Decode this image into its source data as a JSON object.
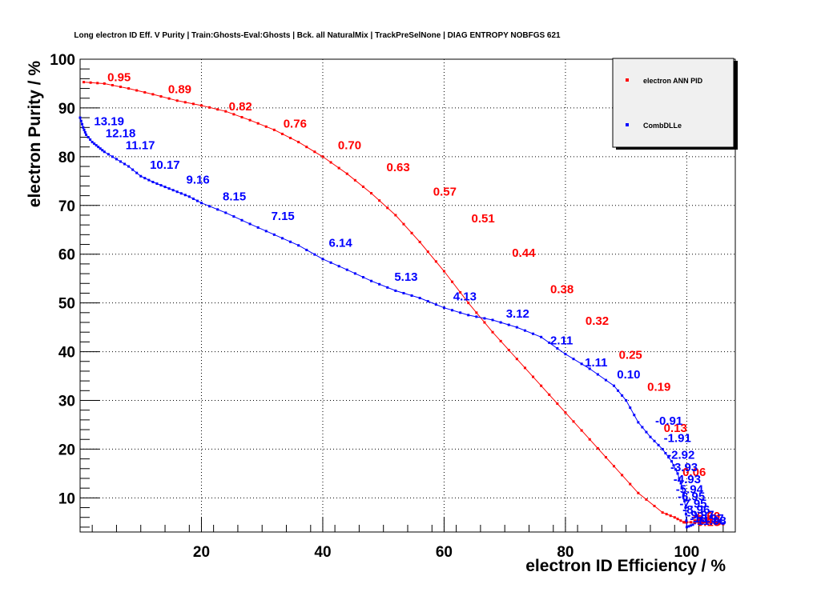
{
  "chart_data": {
    "type": "line",
    "title": "Long electron ID Eff. V Purity | Train:Ghosts-Eval:Ghosts | Bck. all NaturalMix | TrackPreSelNone | DIAG ENTROPY NOBFGS 621",
    "xlabel": "electron ID Efficiency / %",
    "ylabel": "electron Purity / %",
    "xlim": [
      0,
      108
    ],
    "ylim": [
      3,
      100
    ],
    "xticks": [
      20,
      40,
      60,
      80,
      100
    ],
    "yticks": [
      10,
      20,
      30,
      40,
      50,
      60,
      70,
      80,
      90,
      100
    ],
    "grid": true,
    "legend_position": "top-right",
    "series": [
      {
        "name": "electron ANN PID",
        "color": "#ff0000",
        "x": [
          0.6,
          4,
          8,
          12,
          16,
          20,
          24,
          28,
          32,
          36,
          40,
          44,
          48,
          52,
          56,
          60,
          64,
          68,
          72,
          76,
          80,
          84,
          88,
          92,
          96,
          98,
          99.5,
          100,
          102,
          104,
          106
        ],
        "y": [
          95.3,
          95,
          94,
          92.8,
          91.5,
          90.5,
          89.3,
          87.5,
          85.5,
          83,
          80,
          76.5,
          72.5,
          68,
          62.5,
          56.5,
          50,
          44,
          38.5,
          33,
          27.5,
          22,
          16.5,
          11,
          7,
          6,
          5,
          5,
          5,
          4.8,
          4.6
        ],
        "labels": [
          {
            "text": "0.95",
            "x": 4.5,
            "y": 95.5
          },
          {
            "text": "0.89",
            "x": 14.5,
            "y": 93
          },
          {
            "text": "0.82",
            "x": 24.5,
            "y": 89.5
          },
          {
            "text": "0.76",
            "x": 33.5,
            "y": 86
          },
          {
            "text": "0.70",
            "x": 42.5,
            "y": 81.5
          },
          {
            "text": "0.63",
            "x": 50.5,
            "y": 77
          },
          {
            "text": "0.57",
            "x": 58.2,
            "y": 72
          },
          {
            "text": "0.51",
            "x": 64.5,
            "y": 66.5
          },
          {
            "text": "0.44",
            "x": 71.2,
            "y": 59.5
          },
          {
            "text": "0.38",
            "x": 77.5,
            "y": 52
          },
          {
            "text": "0.32",
            "x": 83.3,
            "y": 45.5
          },
          {
            "text": "0.25",
            "x": 88.8,
            "y": 38.5
          },
          {
            "text": "0.19",
            "x": 93.5,
            "y": 32
          },
          {
            "text": "0.13",
            "x": 96.2,
            "y": 23.5
          },
          {
            "text": "0.06",
            "x": 99.3,
            "y": 14.5
          },
          {
            "text": "-0.00",
            "x": 101,
            "y": 5.5
          },
          {
            "text": "-0.06",
            "x": 101,
            "y": 4.8
          },
          {
            "text": "-0.13",
            "x": 101,
            "y": 4.2
          }
        ]
      },
      {
        "name": "CombDLLe",
        "color": "#0000ff",
        "x": [
          0,
          0.5,
          1,
          2,
          3,
          4,
          6,
          8,
          10,
          12,
          14,
          16,
          18,
          20,
          24,
          28,
          32,
          36,
          40,
          44,
          48,
          52,
          56,
          60,
          64,
          68,
          72,
          76,
          80,
          84,
          88,
          90,
          92,
          94,
          96,
          97.5,
          98.5,
          99.3,
          99.8,
          100,
          101,
          102,
          104,
          106
        ],
        "y": [
          88,
          86,
          84.5,
          83,
          82,
          81,
          79.5,
          78,
          76,
          74.8,
          73.8,
          72.8,
          71.8,
          70.5,
          68.5,
          66.2,
          64,
          61.8,
          59,
          56.8,
          54.5,
          52.5,
          51,
          49,
          47.5,
          46.5,
          45,
          43,
          39.5,
          36.5,
          33,
          30,
          25.5,
          22.5,
          20,
          17.5,
          15,
          12,
          8,
          4,
          4.5,
          5.5,
          5,
          4.8
        ],
        "labels": [
          {
            "text": "13.19",
            "x": 2.3,
            "y": 86.5
          },
          {
            "text": "12.18",
            "x": 4.2,
            "y": 84
          },
          {
            "text": "11.17",
            "x": 7.5,
            "y": 81.5
          },
          {
            "text": "10.17",
            "x": 11.5,
            "y": 77.5
          },
          {
            "text": "9.16",
            "x": 17.5,
            "y": 74.5
          },
          {
            "text": "8.15",
            "x": 23.5,
            "y": 71
          },
          {
            "text": "7.15",
            "x": 31.5,
            "y": 67
          },
          {
            "text": "6.14",
            "x": 41,
            "y": 61.5
          },
          {
            "text": "5.13",
            "x": 51.8,
            "y": 54.5
          },
          {
            "text": "4.13",
            "x": 61.5,
            "y": 50.5
          },
          {
            "text": "3.12",
            "x": 70.2,
            "y": 47
          },
          {
            "text": "2.11",
            "x": 77.5,
            "y": 41.5
          },
          {
            "text": "1.11",
            "x": 83.2,
            "y": 37
          },
          {
            "text": "0.10",
            "x": 88.5,
            "y": 34.5
          },
          {
            "text": "-0.91",
            "x": 94.8,
            "y": 25
          },
          {
            "text": "-1.91",
            "x": 96.2,
            "y": 21.5
          },
          {
            "text": "-2.92",
            "x": 96.8,
            "y": 18
          },
          {
            "text": "-3.93",
            "x": 97.3,
            "y": 15.5
          },
          {
            "text": "-4.93",
            "x": 97.8,
            "y": 13
          },
          {
            "text": "-5.94",
            "x": 98.2,
            "y": 11
          },
          {
            "text": "-6.95",
            "x": 98.5,
            "y": 9.5
          },
          {
            "text": "-7.95",
            "x": 98.8,
            "y": 8
          },
          {
            "text": "-8.96",
            "x": 99.3,
            "y": 6.8
          },
          {
            "text": "-9.97",
            "x": 100,
            "y": 5.7
          },
          {
            "text": "-10.97",
            "x": 100.5,
            "y": 5
          },
          {
            "text": "-11.98",
            "x": 101,
            "y": 4.5
          }
        ]
      }
    ]
  }
}
